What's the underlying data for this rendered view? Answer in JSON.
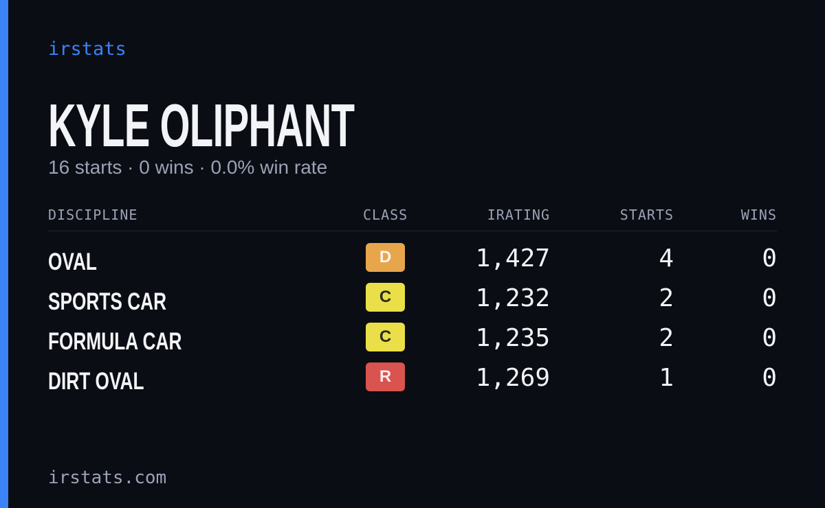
{
  "header": {
    "brand": "irstats",
    "title": "KYLE OLIPHANT",
    "subtitle": "16 starts · 0 wins · 0.0% win rate"
  },
  "table": {
    "columns": [
      "DISCIPLINE",
      "CLASS",
      "IRATING",
      "STARTS",
      "WINS"
    ],
    "rows": [
      [
        "OVAL",
        "D",
        "1,427",
        "4",
        "0"
      ],
      [
        "SPORTS CAR",
        "C",
        "1,232",
        "2",
        "0"
      ],
      [
        "FORMULA CAR",
        "C",
        "1,235",
        "2",
        "0"
      ],
      [
        "DIRT OVAL",
        "R",
        "1,269",
        "1",
        "0"
      ]
    ]
  },
  "footer": {
    "url": "irstats.com"
  }
}
